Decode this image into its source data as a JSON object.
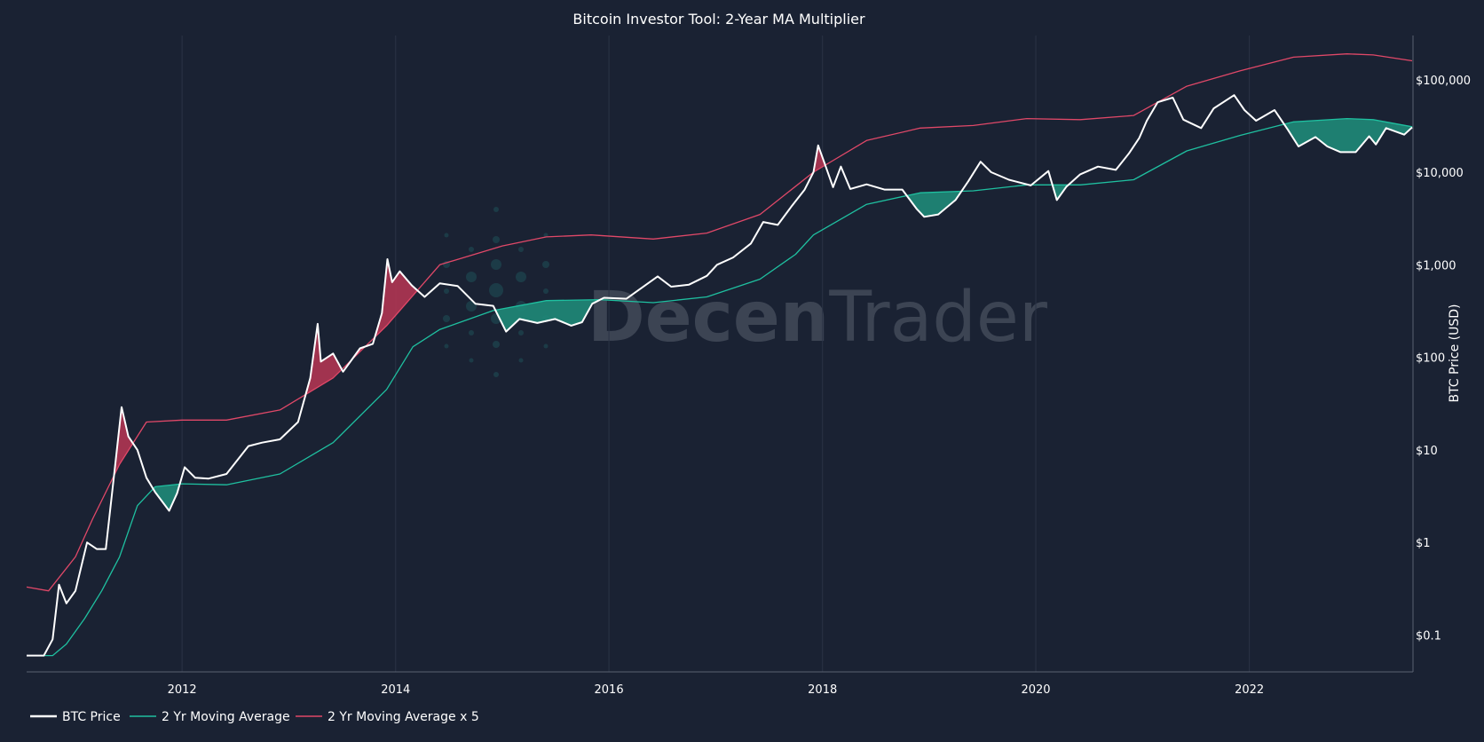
{
  "chart_data": {
    "type": "line",
    "title": "Bitcoin Investor Tool: 2-Year MA Multiplier",
    "xlabel": "",
    "ylabel": "BTC Price (USD)",
    "y_scale": "log",
    "ylim": [
      0.04,
      300000
    ],
    "xlim": [
      "2010-07-18",
      "2023-07-15"
    ],
    "x_ticks": [
      "2012",
      "2014",
      "2016",
      "2018",
      "2020",
      "2022"
    ],
    "y_ticks": [
      {
        "value": 0.1,
        "label": "$0.1"
      },
      {
        "value": 1,
        "label": "$1"
      },
      {
        "value": 10,
        "label": "$10"
      },
      {
        "value": 100,
        "label": "$100"
      },
      {
        "value": 1000,
        "label": "$1,000"
      },
      {
        "value": 10000,
        "label": "$10,000"
      },
      {
        "value": 100000,
        "label": "$100,000"
      }
    ],
    "y_axis_position": "right",
    "grid": "vertical",
    "legend_position": "bottom-left",
    "watermark": {
      "part1": "Decen",
      "part2": "Trader"
    },
    "fill_colors": {
      "below_ma": "#1f8a78",
      "above_ma5": "#b03552"
    },
    "series": [
      {
        "name": "BTC Price",
        "color": "#ffffff",
        "x": [
          "2010-07-18",
          "2010-08-15",
          "2010-09-15",
          "2010-10-15",
          "2010-11-06",
          "2010-12-01",
          "2011-01-01",
          "2011-02-10",
          "2011-03-15",
          "2011-04-15",
          "2011-05-15",
          "2011-06-08",
          "2011-07-01",
          "2011-08-01",
          "2011-09-01",
          "2011-10-01",
          "2011-11-18",
          "2011-12-15",
          "2012-01-10",
          "2012-02-15",
          "2012-04-01",
          "2012-06-01",
          "2012-08-15",
          "2012-10-01",
          "2012-12-01",
          "2013-02-01",
          "2013-03-15",
          "2013-04-09",
          "2013-04-20",
          "2013-06-01",
          "2013-07-05",
          "2013-09-01",
          "2013-10-15",
          "2013-11-15",
          "2013-12-04",
          "2013-12-20",
          "2014-01-15",
          "2014-02-25",
          "2014-04-10",
          "2014-06-01",
          "2014-08-01",
          "2014-10-01",
          "2014-12-01",
          "2015-01-14",
          "2015-03-01",
          "2015-05-01",
          "2015-07-01",
          "2015-08-25",
          "2015-10-01",
          "2015-11-05",
          "2015-12-15",
          "2016-03-01",
          "2016-06-16",
          "2016-08-01",
          "2016-10-01",
          "2016-12-01",
          "2017-01-05",
          "2017-03-01",
          "2017-05-01",
          "2017-06-12",
          "2017-08-01",
          "2017-09-15",
          "2017-11-01",
          "2017-12-01",
          "2017-12-17",
          "2018-01-10",
          "2018-02-06",
          "2018-03-05",
          "2018-04-06",
          "2018-06-01",
          "2018-08-01",
          "2018-10-01",
          "2018-11-20",
          "2018-12-15",
          "2019-02-01",
          "2019-04-01",
          "2019-05-15",
          "2019-06-26",
          "2019-08-01",
          "2019-10-01",
          "2019-12-15",
          "2020-02-13",
          "2020-03-13",
          "2020-04-15",
          "2020-06-01",
          "2020-08-01",
          "2020-10-01",
          "2020-11-15",
          "2020-12-20",
          "2021-01-15",
          "2021-02-21",
          "2021-04-14",
          "2021-05-20",
          "2021-07-20",
          "2021-09-01",
          "2021-11-10",
          "2021-12-15",
          "2022-01-24",
          "2022-03-28",
          "2022-05-12",
          "2022-06-18",
          "2022-08-15",
          "2022-09-25",
          "2022-11-09",
          "2022-12-31",
          "2023-02-15",
          "2023-03-10",
          "2023-04-14",
          "2023-06-15",
          "2023-07-12"
        ],
        "values": [
          0.06,
          0.06,
          0.06,
          0.09,
          0.35,
          0.22,
          0.3,
          1.0,
          0.85,
          0.85,
          6.0,
          29.0,
          14.0,
          10.0,
          5.0,
          3.5,
          2.2,
          3.4,
          6.5,
          5.0,
          4.9,
          5.5,
          11.0,
          12.0,
          13.0,
          20.0,
          60.0,
          230.0,
          90.0,
          110.0,
          70.0,
          125.0,
          140.0,
          300.0,
          1150.0,
          650.0,
          850.0,
          600.0,
          450.0,
          630.0,
          590.0,
          380.0,
          360.0,
          190.0,
          260.0,
          235.0,
          260.0,
          220.0,
          240.0,
          380.0,
          440.0,
          430.0,
          750.0,
          580.0,
          610.0,
          760.0,
          1000.0,
          1200.0,
          1700.0,
          2900.0,
          2700.0,
          4200.0,
          6500.0,
          10000.0,
          19500.0,
          12000.0,
          6900.0,
          11500.0,
          6600.0,
          7400.0,
          6500.0,
          6500.0,
          4000.0,
          3300.0,
          3500.0,
          5000.0,
          8000.0,
          13000.0,
          10000.0,
          8300.0,
          7200.0,
          10300.0,
          5000.0,
          7000.0,
          9500.0,
          11500.0,
          10600.0,
          16000.0,
          23500.0,
          36000.0,
          57000.0,
          64000.0,
          37000.0,
          30000.0,
          49000.0,
          68000.0,
          47000.0,
          36000.0,
          47000.0,
          29000.0,
          19000.0,
          24000.0,
          19000.0,
          16500.0,
          16500.0,
          24500.0,
          20000.0,
          30000.0,
          25500.0,
          30500.0
        ]
      },
      {
        "name": "2 Yr Moving Average",
        "color": "#1fc0a0",
        "x": [
          "2010-07-18",
          "2010-10-15",
          "2010-12-01",
          "2011-02-01",
          "2011-04-01",
          "2011-06-01",
          "2011-08-01",
          "2011-10-01",
          "2012-01-01",
          "2012-06-01",
          "2012-12-01",
          "2013-06-01",
          "2013-12-01",
          "2014-03-01",
          "2014-06-01",
          "2014-12-01",
          "2015-06-01",
          "2015-12-01",
          "2016-06-01",
          "2016-12-01",
          "2017-06-01",
          "2017-10-01",
          "2017-12-01",
          "2018-06-01",
          "2018-12-01",
          "2019-06-01",
          "2019-12-01",
          "2020-06-01",
          "2020-12-01",
          "2021-06-01",
          "2021-12-01",
          "2022-06-01",
          "2022-12-01",
          "2023-03-01",
          "2023-07-12"
        ],
        "values": [
          0.06,
          0.06,
          0.08,
          0.15,
          0.3,
          0.7,
          2.5,
          4.0,
          4.3,
          4.2,
          5.5,
          12.0,
          45.0,
          130.0,
          200.0,
          320.0,
          410.0,
          420.0,
          390.0,
          450.0,
          700.0,
          1300.0,
          2100.0,
          4500.0,
          6000.0,
          6300.0,
          7300.0,
          7300.0,
          8300.0,
          17000.0,
          25000.0,
          35000.0,
          38000.0,
          37000.0,
          31000.0
        ]
      },
      {
        "name": "2 Yr Moving Average x 5",
        "color": "#e04868",
        "x": [
          "2010-07-18",
          "2010-10-01",
          "2011-01-01",
          "2011-03-01",
          "2011-06-01",
          "2011-09-01",
          "2012-01-01",
          "2012-06-01",
          "2012-12-01",
          "2013-06-01",
          "2013-12-01",
          "2014-06-01",
          "2015-01-01",
          "2015-06-01",
          "2015-11-01",
          "2016-06-01",
          "2016-12-01",
          "2017-06-01",
          "2017-12-01",
          "2018-06-01",
          "2018-12-01",
          "2019-06-01",
          "2019-12-01",
          "2020-06-01",
          "2020-12-01",
          "2021-06-01",
          "2021-12-01",
          "2022-06-01",
          "2022-12-01",
          "2023-03-01",
          "2023-07-12"
        ],
        "values": [
          0.33,
          0.3,
          0.7,
          1.8,
          7.0,
          20.0,
          21.0,
          21.0,
          27.0,
          60.0,
          220.0,
          1000.0,
          1600.0,
          2000.0,
          2100.0,
          1900.0,
          2200.0,
          3500.0,
          10000.0,
          22000.0,
          30000.0,
          32000.0,
          38000.0,
          37000.0,
          41000.0,
          85000.0,
          125000.0,
          175000.0,
          190000.0,
          185000.0,
          160000.0
        ]
      }
    ]
  }
}
